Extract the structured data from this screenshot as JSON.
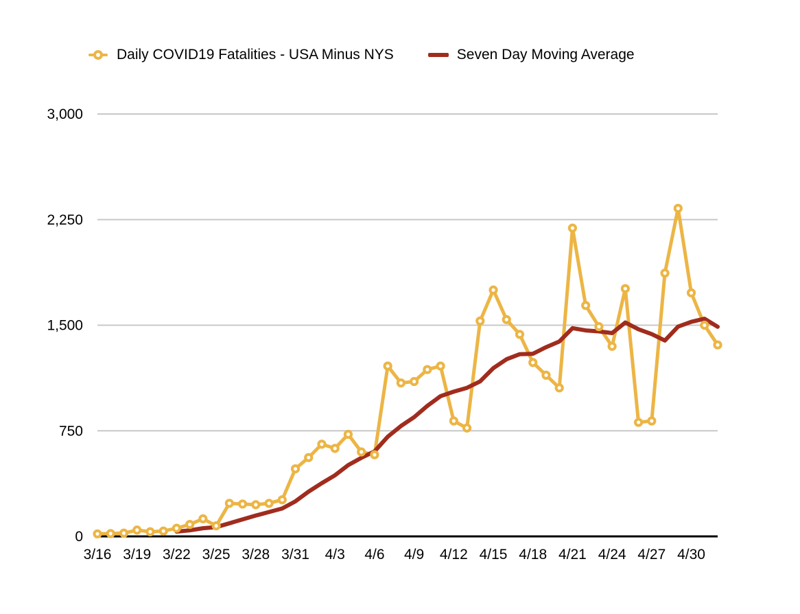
{
  "legend": {
    "series1_label": "Daily COVID19 Fatalities - USA Minus NYS",
    "series2_label": "Seven Day Moving Average"
  },
  "colors": {
    "series1": "#ECB545",
    "series2": "#A02C1E",
    "gridline": "#C8C8C8",
    "axis": "#000000",
    "text": "#000000",
    "background": "#FFFFFF"
  },
  "chart_data": {
    "type": "line",
    "title": "",
    "xlabel": "",
    "ylabel": "",
    "ylim": [
      0,
      3000
    ],
    "grid": true,
    "legend_position": "top",
    "x": [
      "3/16",
      "3/17",
      "3/18",
      "3/19",
      "3/20",
      "3/21",
      "3/22",
      "3/23",
      "3/24",
      "3/25",
      "3/26",
      "3/27",
      "3/28",
      "3/29",
      "3/30",
      "3/31",
      "4/1",
      "4/2",
      "4/3",
      "4/4",
      "4/5",
      "4/6",
      "4/7",
      "4/8",
      "4/9",
      "4/10",
      "4/11",
      "4/12",
      "4/13",
      "4/14",
      "4/15",
      "4/16",
      "4/17",
      "4/18",
      "4/19",
      "4/20",
      "4/21",
      "4/22",
      "4/23",
      "4/24",
      "4/25",
      "4/26",
      "4/27",
      "4/28",
      "4/29",
      "4/30",
      "5/1",
      "5/2"
    ],
    "x_tick_labels": [
      "3/16",
      "3/19",
      "3/22",
      "3/25",
      "3/28",
      "3/31",
      "4/3",
      "4/6",
      "4/9",
      "4/12",
      "4/15",
      "4/18",
      "4/21",
      "4/24",
      "4/27",
      "4/30"
    ],
    "x_tick_every": 3,
    "y_ticks": [
      {
        "value": 0,
        "label": "0"
      },
      {
        "value": 750,
        "label": "750"
      },
      {
        "value": 1500,
        "label": "1,500"
      },
      {
        "value": 2250,
        "label": "2,250"
      },
      {
        "value": 3000,
        "label": "3,000"
      }
    ],
    "series": [
      {
        "name": "Daily COVID19 Fatalities - USA Minus NYS",
        "style": "line-with-ring-markers",
        "start_index": 0,
        "values": [
          18,
          20,
          23,
          45,
          33,
          38,
          58,
          85,
          125,
          75,
          235,
          230,
          225,
          235,
          260,
          480,
          560,
          655,
          625,
          725,
          600,
          580,
          1210,
          1090,
          1100,
          1185,
          1210,
          820,
          770,
          1530,
          1750,
          1540,
          1435,
          1235,
          1145,
          1055,
          2190,
          1640,
          1490,
          1350,
          1760,
          810,
          820,
          1870,
          2330,
          1730,
          1500,
          1360
        ]
      },
      {
        "name": "Seven Day Moving Average",
        "style": "line",
        "start_index": 6,
        "values": [
          34,
          43,
          58,
          66,
          93,
          121,
          148,
          173,
          198,
          249,
          318,
          378,
          434,
          506,
          558,
          604,
          708,
          784,
          847,
          927,
          996,
          1028,
          1055,
          1101,
          1195,
          1258,
          1294,
          1297,
          1344,
          1384,
          1479,
          1463,
          1456,
          1444,
          1519,
          1471,
          1437,
          1391,
          1490,
          1524,
          1546,
          1489
        ]
      }
    ]
  }
}
